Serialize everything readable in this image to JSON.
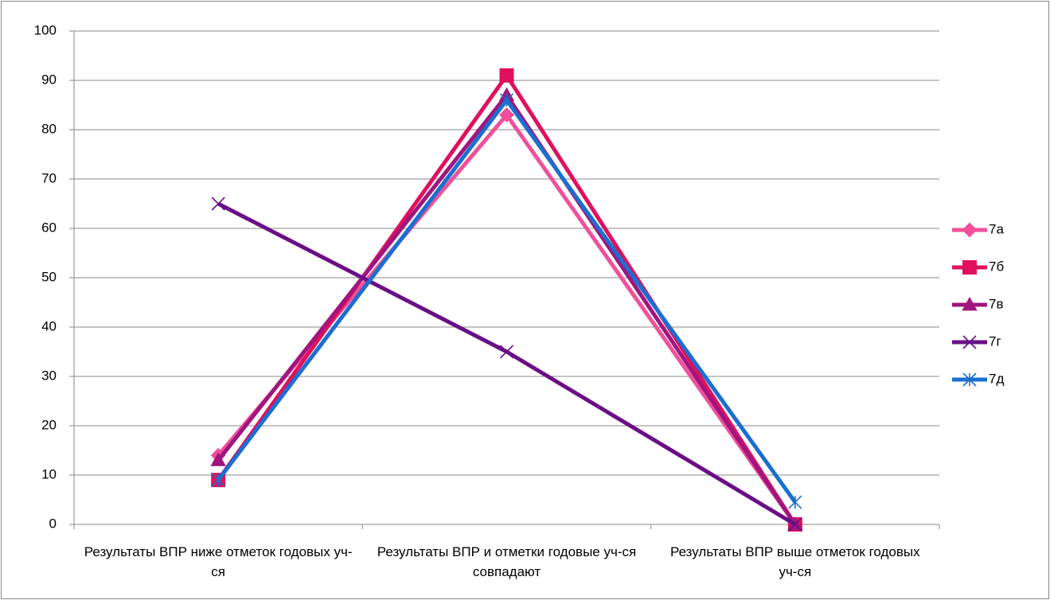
{
  "chart_data": {
    "type": "line",
    "categories": [
      "Результаты ВПР ниже отметок годовых уч-ся",
      "Результаты ВПР и отметки годовые уч-ся совпадают",
      "Результаты ВПР выше отметок годовых уч-ся"
    ],
    "series": [
      {
        "name": "7а",
        "color": "#f0509a",
        "marker": "diamond",
        "values": [
          14,
          83,
          0
        ]
      },
      {
        "name": "7б",
        "color": "#e0105c",
        "marker": "square",
        "values": [
          9,
          91,
          0
        ]
      },
      {
        "name": "7в",
        "color": "#a0157e",
        "marker": "triangle",
        "values": [
          13,
          87,
          0
        ]
      },
      {
        "name": "7г",
        "color": "#6a0f86",
        "marker": "x",
        "values": [
          65,
          35,
          0
        ]
      },
      {
        "name": "7д",
        "color": "#1a6fd0",
        "marker": "asterisk",
        "values": [
          9,
          86,
          4.5
        ]
      }
    ],
    "ylim": [
      0,
      100
    ],
    "yticks": [
      0,
      10,
      20,
      30,
      40,
      50,
      60,
      70,
      80,
      90,
      100
    ],
    "grid": true,
    "legend": "right"
  }
}
